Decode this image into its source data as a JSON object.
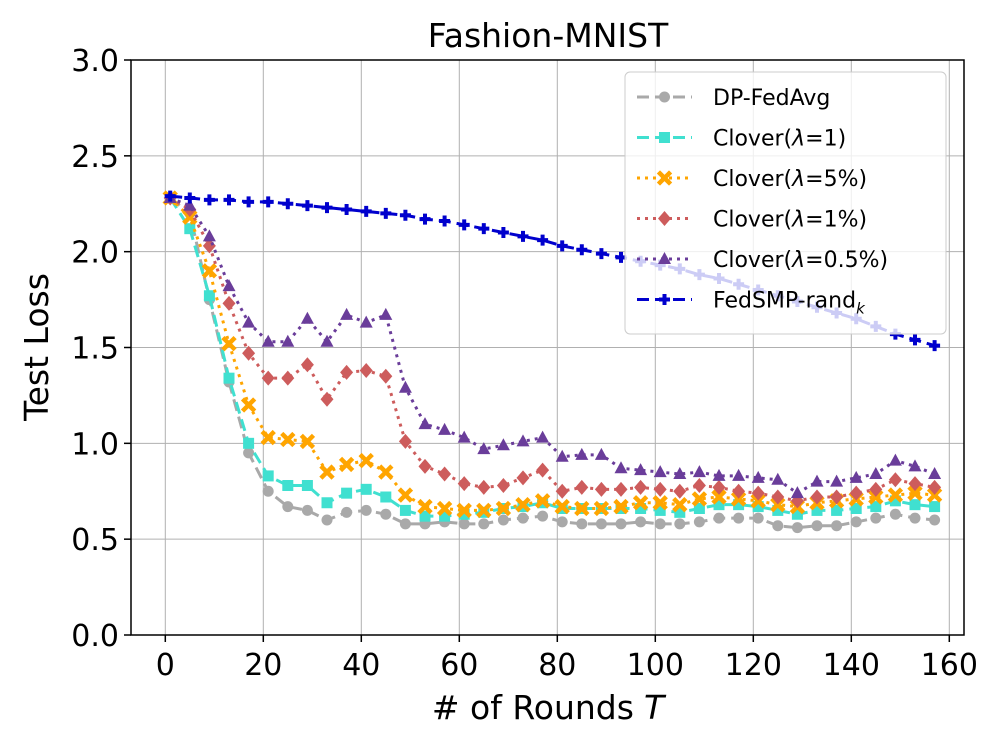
{
  "chart_data": {
    "type": "line",
    "title": "Fashion-MNIST",
    "xlabel": "# of Rounds",
    "xlabel_var": "T",
    "ylabel": "Test Loss",
    "xlim": [
      -7,
      163
    ],
    "ylim": [
      0,
      3.0
    ],
    "xticks": [
      0,
      20,
      40,
      60,
      80,
      100,
      120,
      140,
      160
    ],
    "xtick_labels": [
      "0",
      "20",
      "40",
      "60",
      "80",
      "100",
      "120",
      "140",
      "160"
    ],
    "yticks": [
      0,
      0.5,
      1.0,
      1.5,
      2.0,
      2.5,
      3.0
    ],
    "ytick_labels": [
      "0.0",
      "0.5",
      "1.0",
      "1.5",
      "2.0",
      "2.5",
      "3.0"
    ],
    "grid": true,
    "legend_position": "top-right",
    "x": [
      1,
      5,
      9,
      13,
      17,
      21,
      25,
      29,
      33,
      37,
      41,
      45,
      49,
      53,
      57,
      61,
      65,
      69,
      73,
      77,
      81,
      85,
      89,
      93,
      97,
      101,
      105,
      109,
      113,
      117,
      121,
      125,
      129,
      133,
      137,
      141,
      145,
      149,
      153,
      157
    ],
    "series": [
      {
        "name_prefix": "DP-FedAvg",
        "name_lambda": "",
        "color": "#a9a9a9",
        "dash": "12,6",
        "marker": "circle",
        "values": [
          2.28,
          2.2,
          1.75,
          1.32,
          0.95,
          0.75,
          0.67,
          0.65,
          0.6,
          0.64,
          0.65,
          0.63,
          0.58,
          0.58,
          0.59,
          0.58,
          0.58,
          0.6,
          0.61,
          0.62,
          0.59,
          0.58,
          0.58,
          0.58,
          0.59,
          0.58,
          0.58,
          0.59,
          0.61,
          0.61,
          0.61,
          0.57,
          0.56,
          0.57,
          0.57,
          0.59,
          0.61,
          0.63,
          0.61,
          0.6
        ]
      },
      {
        "name_prefix": "Clover",
        "name_lambda": "=1)",
        "color": "#40e0d0",
        "dash": "12,6",
        "marker": "square",
        "values": [
          2.28,
          2.12,
          1.77,
          1.34,
          1.0,
          0.83,
          0.78,
          0.78,
          0.69,
          0.74,
          0.76,
          0.72,
          0.65,
          0.62,
          0.62,
          0.63,
          0.64,
          0.66,
          0.67,
          0.69,
          0.66,
          0.66,
          0.66,
          0.66,
          0.66,
          0.65,
          0.64,
          0.66,
          0.68,
          0.68,
          0.67,
          0.65,
          0.63,
          0.65,
          0.65,
          0.66,
          0.67,
          0.7,
          0.68,
          0.67
        ]
      },
      {
        "name_prefix": "Clover",
        "name_lambda": "=5%)",
        "color": "#ffa500",
        "dash": "3,5",
        "marker": "x",
        "values": [
          2.28,
          2.18,
          1.9,
          1.52,
          1.2,
          1.03,
          1.02,
          1.01,
          0.85,
          0.89,
          0.91,
          0.85,
          0.73,
          0.67,
          0.66,
          0.65,
          0.65,
          0.66,
          0.68,
          0.7,
          0.67,
          0.66,
          0.66,
          0.67,
          0.69,
          0.69,
          0.68,
          0.71,
          0.72,
          0.71,
          0.7,
          0.68,
          0.67,
          0.69,
          0.7,
          0.71,
          0.72,
          0.73,
          0.74,
          0.73
        ]
      },
      {
        "name_prefix": "Clover",
        "name_lambda": "=1%)",
        "color": "#cd5c5c",
        "dash": "3,5",
        "marker": "diamond",
        "values": [
          2.28,
          2.22,
          2.03,
          1.73,
          1.47,
          1.34,
          1.34,
          1.41,
          1.23,
          1.37,
          1.38,
          1.35,
          1.01,
          0.88,
          0.84,
          0.79,
          0.77,
          0.78,
          0.82,
          0.86,
          0.75,
          0.77,
          0.76,
          0.76,
          0.77,
          0.76,
          0.75,
          0.78,
          0.77,
          0.75,
          0.74,
          0.72,
          0.7,
          0.72,
          0.72,
          0.74,
          0.76,
          0.81,
          0.79,
          0.77
        ]
      },
      {
        "name_prefix": "Clover",
        "name_lambda": "=0.5%)",
        "color": "#6a3d9a",
        "dash": "3,5",
        "marker": "triangle",
        "values": [
          2.28,
          2.24,
          2.08,
          1.82,
          1.63,
          1.53,
          1.53,
          1.65,
          1.53,
          1.67,
          1.63,
          1.67,
          1.29,
          1.1,
          1.07,
          1.03,
          0.97,
          0.99,
          1.01,
          1.03,
          0.93,
          0.94,
          0.94,
          0.87,
          0.86,
          0.85,
          0.84,
          0.85,
          0.83,
          0.83,
          0.82,
          0.81,
          0.74,
          0.8,
          0.8,
          0.82,
          0.84,
          0.91,
          0.88,
          0.84
        ]
      },
      {
        "name_prefix": "FedSMP-rand",
        "name_lambda": "",
        "name_sub": "k",
        "color": "#0000cd",
        "dash": "12,6",
        "marker": "plus",
        "values": [
          2.29,
          2.28,
          2.27,
          2.27,
          2.26,
          2.26,
          2.25,
          2.24,
          2.23,
          2.22,
          2.21,
          2.2,
          2.19,
          2.17,
          2.16,
          2.14,
          2.12,
          2.1,
          2.08,
          2.06,
          2.03,
          2.01,
          1.99,
          1.97,
          1.95,
          1.93,
          1.91,
          1.88,
          1.86,
          1.83,
          1.8,
          1.77,
          1.74,
          1.71,
          1.68,
          1.65,
          1.61,
          1.57,
          1.54,
          1.51
        ]
      }
    ]
  }
}
